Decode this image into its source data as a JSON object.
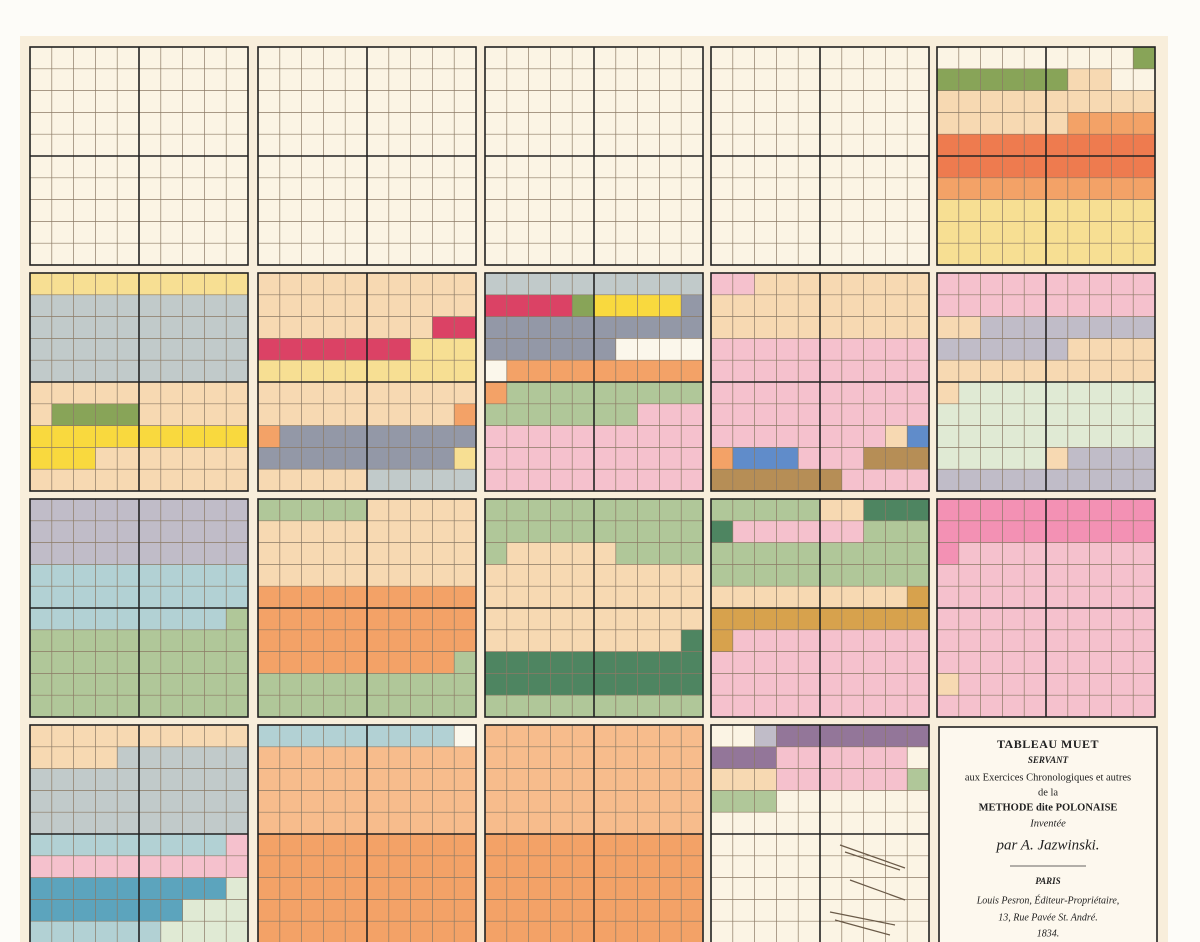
{
  "title_block": {
    "title": "TABLEAU MUET",
    "subtitle": "SERVANT",
    "line1": "aux Exercices Chronologiques et autres",
    "line2": "de la",
    "line3": "METHODE dite POLONAISE",
    "line4": "Inventée",
    "author": "par A. Jazwinski.",
    "city": "PARIS",
    "publisher": "Louis Pesron, Éditeur-Propriétaire,",
    "address": "13, Rue Pavée St. André.",
    "year": "1834."
  }
}
